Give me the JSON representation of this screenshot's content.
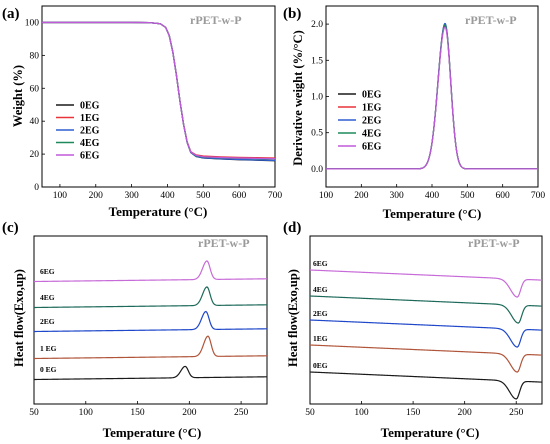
{
  "panels": [
    {
      "id": "a",
      "label": "(a)",
      "tag": "rPET-w-P",
      "ylabel": "Weight (%)",
      "xlabel": "Temperature (°C)"
    },
    {
      "id": "b",
      "label": "(b)",
      "tag": "rPET-w-P",
      "ylabel": "Derivative weight (%/°C)",
      "xlabel": "Temperature (°C)"
    },
    {
      "id": "c",
      "label": "(c)",
      "tag": "rPET-w-P",
      "ylabel": "Heat flow(Exo,up)",
      "xlabel": "Temperature (°C)"
    },
    {
      "id": "d",
      "label": "(d)",
      "tag": "rPET-w-P",
      "ylabel": "Heat flow(Exo,up)",
      "xlabel": "Temperature (°C)"
    }
  ],
  "legend": [
    "0EG",
    "1EG",
    "2EG",
    "4EG",
    "6EG"
  ],
  "colors": {
    "0EG": "#1a1a1a",
    "1EG": "#e8333a",
    "2EG": "#2f5fd0",
    "4EG": "#1e8a5a",
    "6EG": "#c05ad8",
    "c_1EG": "#b0553a",
    "c_2EG": "#1f47c9",
    "c_4EG": "#1e6a5a",
    "c_6EG": "#c76bd8"
  },
  "chart_data": [
    {
      "panel": "a",
      "type": "line",
      "xlim": [
        50,
        700
      ],
      "ylim": [
        0,
        110
      ],
      "xticks": [
        100,
        200,
        300,
        400,
        500,
        600,
        700
      ],
      "yticks": [
        0,
        20,
        40,
        60,
        80,
        100
      ],
      "x": [
        50,
        100,
        200,
        300,
        350,
        380,
        395,
        405,
        415,
        425,
        435,
        445,
        455,
        465,
        480,
        500,
        550,
        600,
        650,
        700
      ],
      "series": [
        {
          "name": "0EG",
          "values": [
            100,
            100,
            100,
            100,
            99.9,
            99.2,
            97,
            92,
            82,
            68,
            52,
            38,
            27,
            21,
            18.5,
            17.6,
            17.0,
            16.6,
            16.3,
            16.0
          ]
        },
        {
          "name": "1EG",
          "values": [
            100,
            100,
            100,
            100,
            99.9,
            99.2,
            97,
            92,
            82,
            68,
            52,
            38,
            27.5,
            21.5,
            19.5,
            18.8,
            18.3,
            18.0,
            17.8,
            17.6
          ]
        },
        {
          "name": "2EG",
          "values": [
            100,
            100,
            100,
            100,
            99.9,
            99.2,
            97,
            92,
            82,
            68,
            52,
            38,
            27,
            21,
            18.6,
            17.7,
            17.1,
            16.7,
            16.4,
            16.1
          ]
        },
        {
          "name": "4EG",
          "values": [
            100,
            100,
            100,
            100,
            99.9,
            99.2,
            97,
            92,
            82,
            68,
            52,
            38,
            27.2,
            21.2,
            19.0,
            18.2,
            17.7,
            17.4,
            17.2,
            17.0
          ]
        },
        {
          "name": "6EG",
          "values": [
            100,
            100,
            100,
            100,
            99.9,
            99.2,
            97,
            92,
            82,
            68,
            52,
            38,
            27.3,
            21.3,
            19.2,
            18.4,
            17.9,
            17.6,
            17.4,
            17.2
          ]
        }
      ]
    },
    {
      "panel": "b",
      "type": "line",
      "xlim": [
        100,
        700
      ],
      "ylim": [
        -0.25,
        2.25
      ],
      "xticks": [
        100,
        200,
        300,
        400,
        500,
        600,
        700
      ],
      "yticks": [
        0.0,
        0.5,
        1.0,
        1.5,
        2.0
      ],
      "peak_center": 437,
      "series": [
        {
          "name": "0EG",
          "peak": 1.98
        },
        {
          "name": "1EG",
          "peak": 2.0
        },
        {
          "name": "2EG",
          "peak": 2.01
        },
        {
          "name": "4EG",
          "peak": 1.99
        },
        {
          "name": "6EG",
          "peak": 1.96
        }
      ]
    },
    {
      "panel": "c",
      "type": "line",
      "xlim": [
        50,
        275
      ],
      "xticks": [
        50,
        100,
        150,
        200,
        250
      ],
      "series": [
        {
          "name": "6EG",
          "label": "6EG",
          "peak_x": 217,
          "peak_h": 0.62
        },
        {
          "name": "4EG",
          "label": "4EG",
          "peak_x": 217,
          "peak_h": 0.62
        },
        {
          "name": "2EG",
          "label": "2EG",
          "peak_x": 216,
          "peak_h": 0.6
        },
        {
          "name": "1EG",
          "label": "1 EG",
          "peak_x": 218,
          "peak_h": 0.68
        },
        {
          "name": "0EG",
          "label": "0 EG",
          "peak_x": 196,
          "peak_h": 0.38
        }
      ]
    },
    {
      "panel": "d",
      "type": "line",
      "xlim": [
        50,
        275
      ],
      "xticks": [
        50,
        100,
        150,
        200,
        250
      ],
      "series": [
        {
          "name": "6EG",
          "label": "6EG",
          "dip_x": 251
        },
        {
          "name": "4EG",
          "label": "4EG",
          "dip_x": 252
        },
        {
          "name": "2EG",
          "label": "2EG",
          "dip_x": 251
        },
        {
          "name": "1EG",
          "label": "1EG",
          "dip_x": 251
        },
        {
          "name": "0EG",
          "label": "0EG",
          "dip_x": 250
        }
      ]
    }
  ]
}
